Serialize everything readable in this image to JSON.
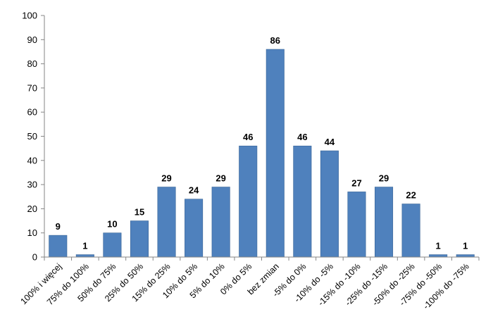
{
  "chart_data": {
    "type": "bar",
    "title": "",
    "xlabel": "",
    "ylabel": "",
    "ylim": [
      0,
      100
    ],
    "ytick_step": 10,
    "grid": false,
    "bar_color": "#4f81bd",
    "categories": [
      "100% i więcej",
      "75% do 100%",
      "50% do 75%",
      "25% do 50%",
      "15% do 25%",
      "10% do 5%",
      "5% do 10%",
      "0% do 5%",
      "bez zmian",
      "-5% do 0%",
      "-10% do -5%",
      "-15% do -10%",
      "-25% do -15%",
      "-50% do -25%",
      "-75% do -50%",
      "-100% do -75%"
    ],
    "values": [
      9,
      1,
      10,
      15,
      29,
      24,
      29,
      46,
      86,
      46,
      44,
      27,
      29,
      22,
      1,
      1
    ]
  }
}
